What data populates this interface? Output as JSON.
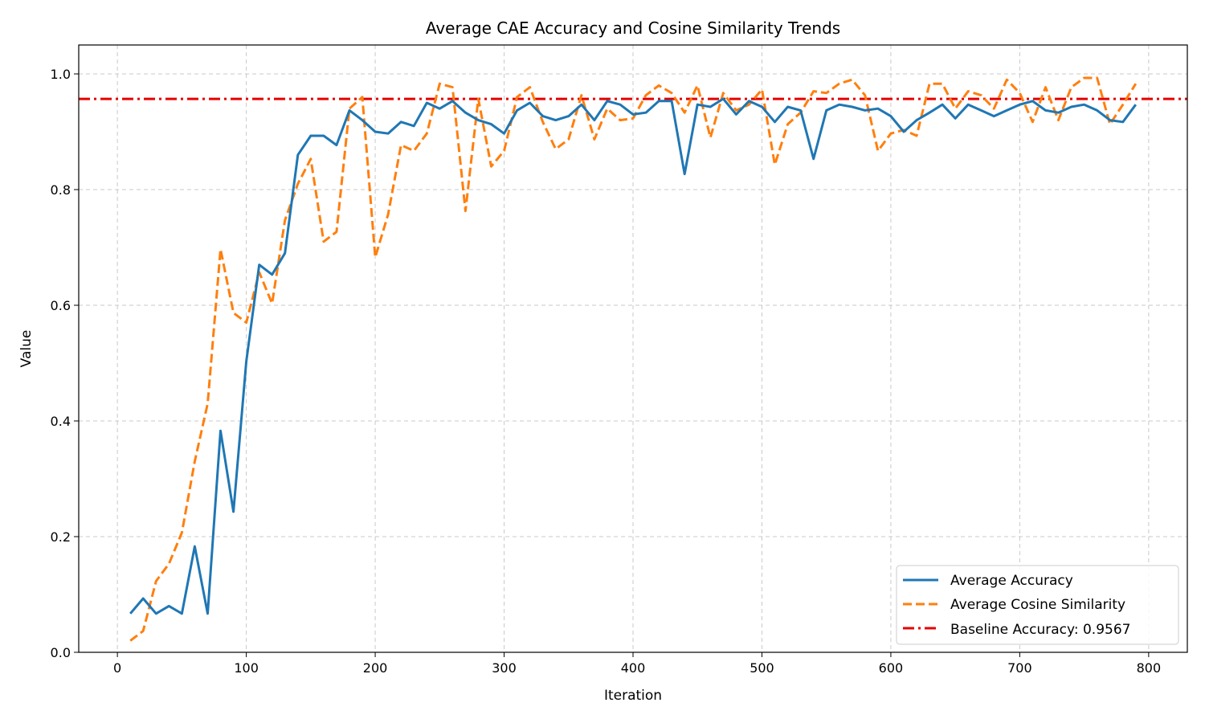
{
  "chart_data": {
    "type": "line",
    "title": "Average CAE Accuracy and Cosine Similarity Trends",
    "xlabel": "Iteration",
    "ylabel": "Value",
    "xlim": [
      -30,
      830
    ],
    "ylim": [
      0.0,
      1.05
    ],
    "xticks": [
      0,
      100,
      200,
      300,
      400,
      500,
      600,
      700,
      800
    ],
    "yticks": [
      0.0,
      0.2,
      0.4,
      0.6,
      0.8,
      1.0
    ],
    "xtick_labels": [
      "0",
      "100",
      "200",
      "300",
      "400",
      "500",
      "600",
      "700",
      "800"
    ],
    "ytick_labels": [
      "0.0",
      "0.2",
      "0.4",
      "0.6",
      "0.8",
      "1.0"
    ],
    "grid": true,
    "legend_position": "bottom-right",
    "x": [
      10,
      20,
      30,
      40,
      50,
      60,
      70,
      80,
      90,
      100,
      110,
      120,
      130,
      140,
      150,
      160,
      170,
      180,
      190,
      200,
      210,
      220,
      230,
      240,
      250,
      260,
      270,
      280,
      290,
      300,
      310,
      320,
      330,
      340,
      350,
      360,
      370,
      380,
      390,
      400,
      410,
      420,
      430,
      440,
      450,
      460,
      470,
      480,
      490,
      500,
      510,
      520,
      530,
      540,
      550,
      560,
      570,
      580,
      590,
      600,
      610,
      620,
      630,
      640,
      650,
      660,
      670,
      680,
      690,
      700,
      710,
      720,
      730,
      740,
      750,
      760,
      770,
      780,
      790
    ],
    "series": [
      {
        "name": "Average Accuracy",
        "color": "#1f77b4",
        "style": "solid",
        "values": [
          0.067,
          0.093,
          0.067,
          0.08,
          0.067,
          0.183,
          0.067,
          0.383,
          0.243,
          0.503,
          0.67,
          0.653,
          0.69,
          0.86,
          0.893,
          0.893,
          0.877,
          0.937,
          0.92,
          0.9,
          0.897,
          0.917,
          0.91,
          0.95,
          0.94,
          0.953,
          0.933,
          0.92,
          0.913,
          0.897,
          0.937,
          0.95,
          0.927,
          0.92,
          0.927,
          0.947,
          0.92,
          0.953,
          0.947,
          0.93,
          0.933,
          0.953,
          0.953,
          0.827,
          0.947,
          0.943,
          0.957,
          0.93,
          0.953,
          0.943,
          0.917,
          0.943,
          0.937,
          0.853,
          0.937,
          0.947,
          0.943,
          0.937,
          0.94,
          0.927,
          0.9,
          0.92,
          0.933,
          0.947,
          0.923,
          0.947,
          0.937,
          0.927,
          0.937,
          0.947,
          0.953,
          0.937,
          0.933,
          0.943,
          0.947,
          0.937,
          0.92,
          0.917,
          0.947
        ]
      },
      {
        "name": "Average Cosine Similarity",
        "color": "#ff7f0e",
        "style": "dashed",
        "values": [
          0.02,
          0.037,
          0.123,
          0.153,
          0.207,
          0.33,
          0.43,
          0.697,
          0.587,
          0.57,
          0.657,
          0.603,
          0.747,
          0.81,
          0.853,
          0.71,
          0.727,
          0.94,
          0.96,
          0.683,
          0.757,
          0.877,
          0.867,
          0.897,
          0.983,
          0.977,
          0.763,
          0.957,
          0.84,
          0.867,
          0.96,
          0.977,
          0.917,
          0.87,
          0.887,
          0.963,
          0.887,
          0.94,
          0.92,
          0.923,
          0.963,
          0.98,
          0.967,
          0.933,
          0.98,
          0.89,
          0.967,
          0.937,
          0.947,
          0.973,
          0.843,
          0.913,
          0.933,
          0.97,
          0.967,
          0.983,
          0.99,
          0.963,
          0.867,
          0.897,
          0.903,
          0.893,
          0.983,
          0.983,
          0.94,
          0.97,
          0.963,
          0.94,
          0.99,
          0.967,
          0.917,
          0.977,
          0.92,
          0.977,
          0.993,
          0.993,
          0.913,
          0.947,
          0.983
        ]
      }
    ],
    "baseline": {
      "name": "Baseline Accuracy: 0.9567",
      "value": 0.9567,
      "color": "#e50000",
      "style": "dashdot"
    }
  }
}
